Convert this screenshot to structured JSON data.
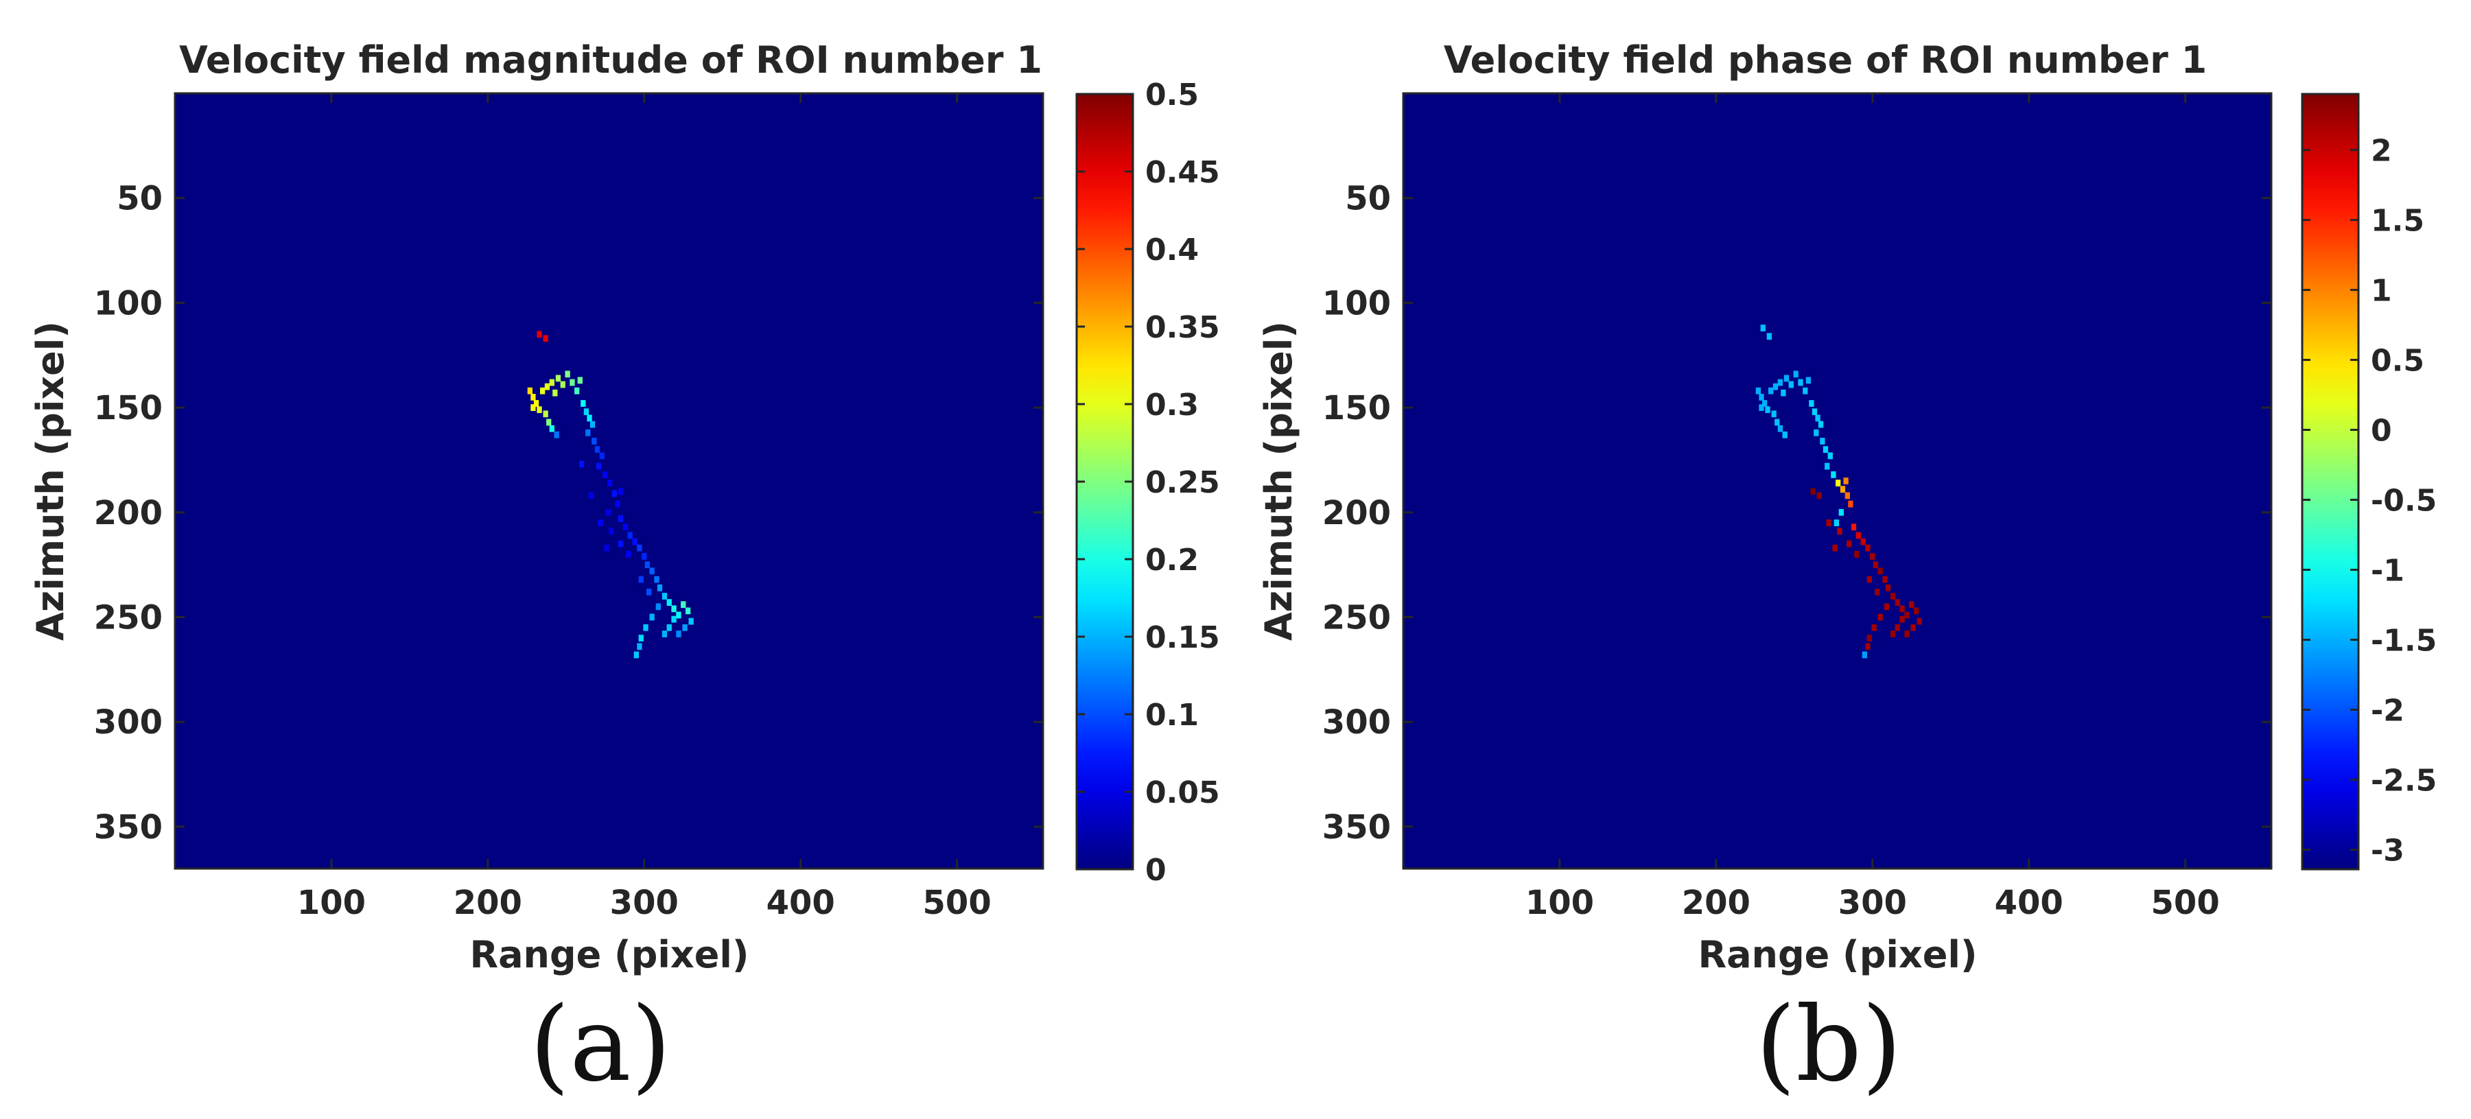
{
  "figure": {
    "panel_labels": [
      "(a)",
      "(b)"
    ]
  },
  "chart_data": [
    {
      "type": "heatmap",
      "title": "Velocity field magnitude of ROI number 1",
      "xlabel": "Range (pixel)",
      "ylabel": "Azimuth (pixel)",
      "xlim": [
        0,
        555
      ],
      "ylim": [
        0,
        370
      ],
      "y_reversed": true,
      "xticks": [
        100,
        200,
        300,
        400,
        500
      ],
      "yticks": [
        50,
        100,
        150,
        200,
        250,
        300,
        350
      ],
      "background_value": 0,
      "colormap": "jet",
      "colorbar": {
        "min": 0,
        "max": 0.5,
        "ticks": [
          0,
          0.05,
          0.1,
          0.15,
          0.2,
          0.25,
          0.3,
          0.35,
          0.4,
          0.45,
          0.5
        ],
        "tick_labels": [
          "0",
          "0.05",
          "0.1",
          "0.15",
          "0.2",
          "0.25",
          "0.3",
          "0.35",
          "0.4",
          "0.45",
          "0.5"
        ]
      },
      "points": [
        [
          233,
          115,
          0.45
        ],
        [
          237,
          117,
          0.45
        ],
        [
          227,
          142,
          0.33
        ],
        [
          229,
          145,
          0.32
        ],
        [
          231,
          148,
          0.31
        ],
        [
          233,
          151,
          0.3
        ],
        [
          229,
          150,
          0.31
        ],
        [
          235,
          142,
          0.3
        ],
        [
          238,
          140,
          0.3
        ],
        [
          241,
          138,
          0.29
        ],
        [
          243,
          143,
          0.28
        ],
        [
          245,
          136,
          0.27
        ],
        [
          248,
          139,
          0.27
        ],
        [
          251,
          134,
          0.25
        ],
        [
          254,
          138,
          0.24
        ],
        [
          257,
          142,
          0.22
        ],
        [
          259,
          137,
          0.24
        ],
        [
          237,
          153,
          0.28
        ],
        [
          239,
          157,
          0.25
        ],
        [
          241,
          160,
          0.2
        ],
        [
          244,
          163,
          0.12
        ],
        [
          261,
          148,
          0.19
        ],
        [
          263,
          152,
          0.17
        ],
        [
          265,
          155,
          0.18
        ],
        [
          267,
          158,
          0.15
        ],
        [
          264,
          162,
          0.12
        ],
        [
          268,
          166,
          0.1
        ],
        [
          270,
          170,
          0.09
        ],
        [
          273,
          173,
          0.08
        ],
        [
          271,
          178,
          0.07
        ],
        [
          275,
          182,
          0.06
        ],
        [
          278,
          186,
          0.06
        ],
        [
          281,
          191,
          0.07
        ],
        [
          283,
          196,
          0.06
        ],
        [
          277,
          200,
          0.05
        ],
        [
          285,
          203,
          0.07
        ],
        [
          288,
          207,
          0.06
        ],
        [
          291,
          211,
          0.08
        ],
        [
          294,
          214,
          0.07
        ],
        [
          297,
          217,
          0.09
        ],
        [
          300,
          221,
          0.08
        ],
        [
          302,
          225,
          0.1
        ],
        [
          305,
          228,
          0.11
        ],
        [
          308,
          232,
          0.12
        ],
        [
          310,
          236,
          0.14
        ],
        [
          313,
          240,
          0.16
        ],
        [
          316,
          243,
          0.18
        ],
        [
          319,
          246,
          0.2
        ],
        [
          322,
          249,
          0.19
        ],
        [
          325,
          244,
          0.22
        ],
        [
          328,
          247,
          0.21
        ],
        [
          319,
          251,
          0.17
        ],
        [
          316,
          255,
          0.16
        ],
        [
          313,
          258,
          0.15
        ],
        [
          305,
          250,
          0.15
        ],
        [
          301,
          255,
          0.16
        ],
        [
          298,
          260,
          0.17
        ],
        [
          297,
          264,
          0.15
        ],
        [
          295,
          268,
          0.16
        ],
        [
          326,
          255,
          0.14
        ],
        [
          322,
          258,
          0.13
        ],
        [
          330,
          252,
          0.16
        ],
        [
          260,
          177,
          0.07
        ],
        [
          266,
          192,
          0.05
        ],
        [
          272,
          205,
          0.06
        ],
        [
          279,
          209,
          0.05
        ],
        [
          285,
          215,
          0.07
        ],
        [
          290,
          220,
          0.06
        ],
        [
          276,
          217,
          0.05
        ],
        [
          298,
          232,
          0.09
        ],
        [
          303,
          238,
          0.1
        ],
        [
          309,
          245,
          0.13
        ],
        [
          285,
          190,
          0.05
        ]
      ]
    },
    {
      "type": "heatmap",
      "title": "Velocity field phase of ROI number 1",
      "xlabel": "Range (pixel)",
      "ylabel": "Azimuth (pixel)",
      "xlim": [
        0,
        555
      ],
      "ylim": [
        0,
        370
      ],
      "y_reversed": true,
      "xticks": [
        100,
        200,
        300,
        400,
        500
      ],
      "yticks": [
        50,
        100,
        150,
        200,
        250,
        300,
        350
      ],
      "background_value": -3.14,
      "colormap": "jet",
      "colorbar": {
        "min": -3.14,
        "max": 2.4,
        "ticks": [
          -3,
          -2.5,
          -2,
          -1.5,
          -1,
          -0.5,
          0,
          0.5,
          1,
          1.5,
          2
        ],
        "tick_labels": [
          "-3",
          "-2.5",
          "-2",
          "-1.5",
          "-1",
          "-0.5",
          "0",
          "0.5",
          "1",
          "1.5",
          "2"
        ]
      },
      "points": [
        [
          230,
          112,
          -1.4
        ],
        [
          234,
          116,
          -1.4
        ],
        [
          227,
          142,
          -1.5
        ],
        [
          229,
          145,
          -1.5
        ],
        [
          231,
          148,
          -1.5
        ],
        [
          233,
          151,
          -1.4
        ],
        [
          229,
          150,
          -1.5
        ],
        [
          235,
          142,
          -1.5
        ],
        [
          238,
          140,
          -1.5
        ],
        [
          241,
          138,
          -1.5
        ],
        [
          243,
          143,
          -1.4
        ],
        [
          245,
          136,
          -1.5
        ],
        [
          248,
          139,
          -1.4
        ],
        [
          251,
          134,
          -1.5
        ],
        [
          254,
          138,
          -1.4
        ],
        [
          257,
          142,
          -1.4
        ],
        [
          259,
          137,
          -1.5
        ],
        [
          237,
          153,
          -1.4
        ],
        [
          239,
          157,
          -1.4
        ],
        [
          241,
          160,
          -1.5
        ],
        [
          244,
          163,
          -1.4
        ],
        [
          261,
          148,
          -1.3
        ],
        [
          263,
          152,
          -1.3
        ],
        [
          265,
          155,
          -1.4
        ],
        [
          267,
          158,
          -1.3
        ],
        [
          264,
          162,
          -1.4
        ],
        [
          268,
          166,
          -1.4
        ],
        [
          270,
          170,
          -1.3
        ],
        [
          273,
          173,
          -1.3
        ],
        [
          271,
          178,
          -1.4
        ],
        [
          275,
          182,
          -1.2
        ],
        [
          278,
          186,
          0.3
        ],
        [
          281,
          189,
          0.8
        ],
        [
          284,
          192,
          1.1
        ],
        [
          286,
          196,
          1.3
        ],
        [
          280,
          200,
          -1.2
        ],
        [
          277,
          205,
          -1.3
        ],
        [
          288,
          207,
          1.6
        ],
        [
          291,
          211,
          1.9
        ],
        [
          294,
          214,
          2.0
        ],
        [
          297,
          217,
          2.1
        ],
        [
          300,
          221,
          2.2
        ],
        [
          302,
          225,
          2.2
        ],
        [
          305,
          228,
          2.3
        ],
        [
          308,
          232,
          2.2
        ],
        [
          310,
          236,
          2.2
        ],
        [
          313,
          240,
          2.3
        ],
        [
          316,
          243,
          2.2
        ],
        [
          319,
          246,
          2.2
        ],
        [
          322,
          249,
          2.3
        ],
        [
          325,
          244,
          2.2
        ],
        [
          328,
          247,
          2.3
        ],
        [
          319,
          251,
          2.2
        ],
        [
          316,
          255,
          2.2
        ],
        [
          313,
          258,
          2.3
        ],
        [
          305,
          250,
          2.2
        ],
        [
          301,
          255,
          2.2
        ],
        [
          298,
          260,
          2.3
        ],
        [
          297,
          264,
          2.2
        ],
        [
          295,
          268,
          -1.6
        ],
        [
          326,
          255,
          2.2
        ],
        [
          322,
          258,
          2.3
        ],
        [
          330,
          252,
          2.2
        ],
        [
          266,
          192,
          2.3
        ],
        [
          272,
          205,
          2.2
        ],
        [
          279,
          209,
          2.1
        ],
        [
          285,
          215,
          2.2
        ],
        [
          290,
          220,
          2.3
        ],
        [
          276,
          217,
          2.2
        ],
        [
          298,
          232,
          2.2
        ],
        [
          303,
          238,
          2.3
        ],
        [
          309,
          245,
          2.2
        ],
        [
          262,
          190,
          2.4
        ],
        [
          283,
          185,
          1.0
        ]
      ]
    }
  ]
}
